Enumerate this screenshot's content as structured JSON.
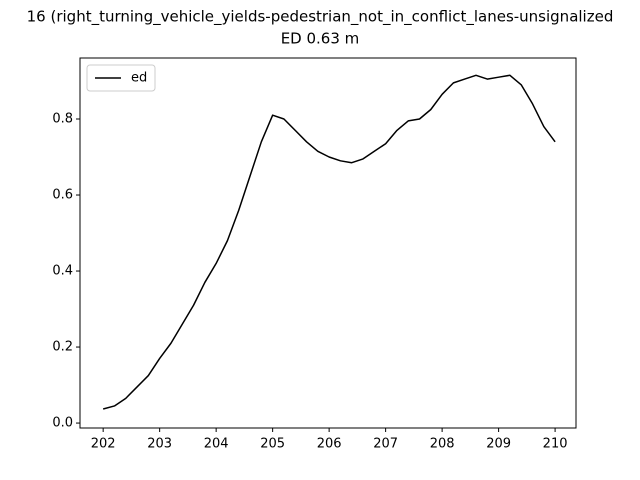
{
  "chart_data": {
    "type": "line",
    "title": "16 (right_turning_vehicle_yields-pedestrian_not_in_conflict_lanes-unsignalized",
    "subtitle": "ED 0.63 m",
    "x": [
      202.0,
      202.2,
      202.4,
      202.6,
      202.8,
      203.0,
      203.2,
      203.4,
      203.6,
      203.8,
      204.0,
      204.2,
      204.4,
      204.6,
      204.8,
      205.0,
      205.2,
      205.4,
      205.6,
      205.8,
      206.0,
      206.2,
      206.4,
      206.6,
      206.8,
      207.0,
      207.2,
      207.4,
      207.6,
      207.8,
      208.0,
      208.2,
      208.4,
      208.6,
      208.8,
      209.0,
      209.2,
      209.4,
      209.6,
      209.8,
      210.0
    ],
    "series": [
      {
        "name": "ed",
        "color": "#000000",
        "values": [
          0.037,
          0.045,
          0.065,
          0.095,
          0.125,
          0.17,
          0.21,
          0.26,
          0.31,
          0.37,
          0.42,
          0.48,
          0.56,
          0.65,
          0.74,
          0.81,
          0.8,
          0.77,
          0.74,
          0.715,
          0.7,
          0.69,
          0.685,
          0.695,
          0.715,
          0.735,
          0.77,
          0.795,
          0.8,
          0.825,
          0.865,
          0.895,
          0.905,
          0.915,
          0.905,
          0.91,
          0.915,
          0.89,
          0.84,
          0.78,
          0.74
        ]
      }
    ],
    "xlim": [
      201.59,
      210.37
    ],
    "xticks": [
      202,
      203,
      204,
      205,
      206,
      207,
      208,
      209,
      210
    ],
    "ylim": [
      -0.013,
      0.9605
    ],
    "yticks": [
      {
        "value": 0,
        "label": "0.0"
      },
      0.2,
      0.4,
      0.6,
      0.8
    ],
    "legend": "upper left"
  }
}
